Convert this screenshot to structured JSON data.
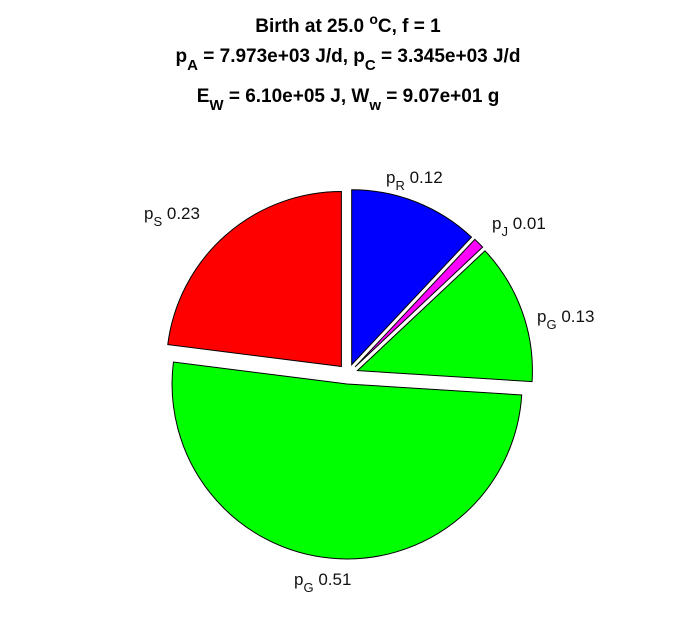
{
  "title": {
    "line1": {
      "before": "Birth at 25.0 ",
      "sup": "o",
      "after": "C, f = 1"
    },
    "line2": [
      {
        "t": "p"
      },
      {
        "t": "A",
        "sub": true
      },
      {
        "t": " = 7.973e+03 J/d, p"
      },
      {
        "t": "C",
        "sub": true
      },
      {
        "t": " = 3.345e+03 J/d"
      }
    ],
    "line3": [
      {
        "t": "E"
      },
      {
        "t": "W",
        "sub": true
      },
      {
        "t": " = 6.10e+05 J, W"
      },
      {
        "t": "w",
        "sub": true
      },
      {
        "t": " = 9.07e+01 g"
      }
    ]
  },
  "chart_data": {
    "type": "pie",
    "title": "Birth at 25.0 °C, f = 1 | pA = 7.973e+03 J/d, pC = 3.345e+03 J/d | EW = 6.10e+05 J, Ww = 9.07e+01 g",
    "start": "top, clockwise",
    "exploded": true,
    "slices": [
      {
        "label": "p",
        "sub": "R",
        "value": 0.12,
        "display": "0.12",
        "color": "#0000ff"
      },
      {
        "label": "p",
        "sub": "J",
        "value": 0.01,
        "display": "0.01",
        "color": "#ff00ff"
      },
      {
        "label": "p",
        "sub": "G",
        "value": 0.13,
        "display": "0.13",
        "color": "#00ff00"
      },
      {
        "label": "p",
        "sub": "G",
        "value": 0.51,
        "display": "0.51",
        "color": "#00ff00"
      },
      {
        "label": "p",
        "sub": "S",
        "value": 0.23,
        "display": "0.23",
        "color": "#ff0000"
      }
    ]
  }
}
